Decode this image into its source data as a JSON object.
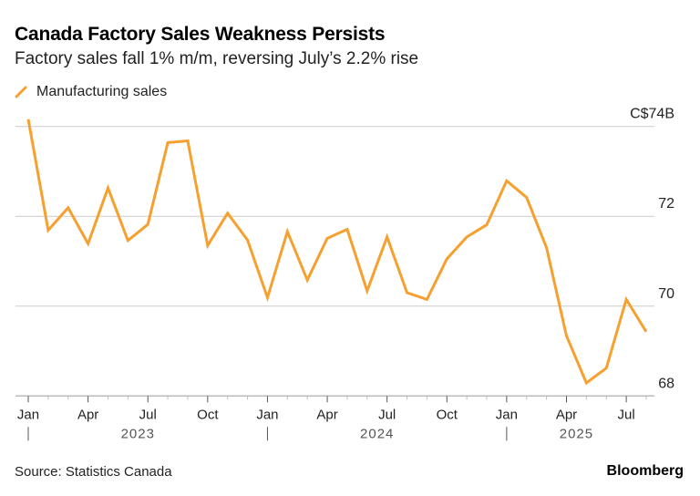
{
  "header": {
    "title": "Canada Factory Sales Weakness Persists",
    "subtitle": "Factory sales fall 1% m/m, reversing July’s 2.2% rise"
  },
  "footer": {
    "source": "Source: Statistics Canada",
    "brand": "Bloomberg"
  },
  "colors": {
    "series": "#f5a02f",
    "grid": "#cccccc",
    "axis": "#bbbbbb"
  },
  "chart_data": {
    "type": "line",
    "title": "Canada Factory Sales Weakness Persists",
    "subtitle": "Factory sales fall 1% m/m, reversing July’s 2.2% rise",
    "ylim": [
      68,
      74
    ],
    "y_ticks": [
      {
        "value": 74,
        "label": "C$74B"
      },
      {
        "value": 72,
        "label": "72"
      },
      {
        "value": 70,
        "label": "70"
      },
      {
        "value": 68,
        "label": "68"
      }
    ],
    "y_axis_side": "right",
    "grid": true,
    "legend_placement": "top-left",
    "x_tick_labels": [
      {
        "index": 0,
        "label": "Jan"
      },
      {
        "index": 3,
        "label": "Apr"
      },
      {
        "index": 6,
        "label": "Jul"
      },
      {
        "index": 9,
        "label": "Oct"
      },
      {
        "index": 12,
        "label": "Jan"
      },
      {
        "index": 15,
        "label": "Apr"
      },
      {
        "index": 18,
        "label": "Jul"
      },
      {
        "index": 21,
        "label": "Oct"
      },
      {
        "index": 24,
        "label": "Jan"
      },
      {
        "index": 27,
        "label": "Apr"
      },
      {
        "index": 30,
        "label": "Jul"
      }
    ],
    "x_year_labels": [
      {
        "start": 0,
        "label": "2023"
      },
      {
        "start": 12,
        "label": "2024"
      },
      {
        "start": 24,
        "label": "2025"
      }
    ],
    "x": [
      "2023-01",
      "2023-02",
      "2023-03",
      "2023-04",
      "2023-05",
      "2023-06",
      "2023-07",
      "2023-08",
      "2023-09",
      "2023-10",
      "2023-11",
      "2023-12",
      "2024-01",
      "2024-02",
      "2024-03",
      "2024-04",
      "2024-05",
      "2024-06",
      "2024-07",
      "2024-08",
      "2024-09",
      "2024-10",
      "2024-11",
      "2024-12",
      "2025-01",
      "2025-02",
      "2025-03",
      "2025-04",
      "2025-05",
      "2025-06",
      "2025-07",
      "2025-08"
    ],
    "series": [
      {
        "name": "Manufacturing sales",
        "values": [
          74.16,
          71.69,
          72.19,
          71.39,
          72.63,
          71.46,
          71.82,
          73.64,
          73.68,
          71.35,
          72.07,
          71.47,
          70.19,
          71.66,
          70.58,
          71.51,
          71.71,
          70.34,
          71.54,
          70.3,
          70.15,
          71.05,
          71.54,
          71.81,
          72.79,
          72.42,
          71.3,
          69.34,
          68.29,
          68.62,
          70.15,
          69.43
        ]
      }
    ]
  }
}
